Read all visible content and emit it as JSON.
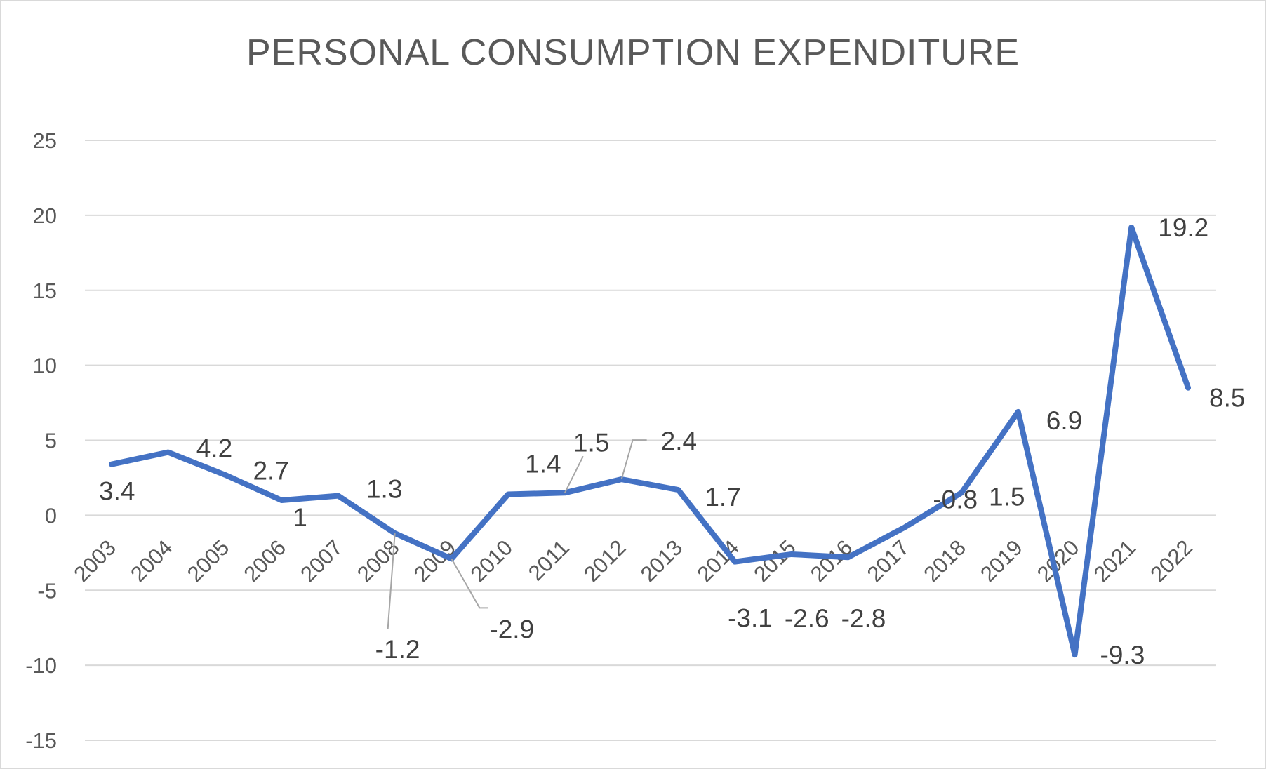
{
  "chart_data": {
    "type": "line",
    "title": "PERSONAL CONSUMPTION EXPENDITURE",
    "categories": [
      "2003",
      "2004",
      "2005",
      "2006",
      "2007",
      "2008",
      "2009",
      "2010",
      "2011",
      "2012",
      "2013",
      "2014",
      "2015",
      "2016",
      "2017",
      "2018",
      "2019",
      "2020",
      "2021",
      "2022"
    ],
    "series": [
      {
        "values": [
          3.4,
          4.2,
          2.7,
          1,
          1.3,
          -1.2,
          -2.9,
          1.4,
          1.5,
          2.4,
          1.7,
          -3.1,
          -2.6,
          -2.8,
          -0.8,
          1.5,
          6.9,
          -9.3,
          19.2,
          8.5
        ],
        "labels": [
          "3.4",
          "4.2",
          "2.7",
          "1",
          "1.3",
          "-1.2",
          "-2.9",
          "1.4",
          "1.5",
          "2.4",
          "1.7",
          "-3.1",
          "-2.6",
          "-2.8",
          "-0.8",
          "1.5",
          "6.9",
          "-9.3",
          "19.2",
          "8.5"
        ],
        "color": "#4472C4"
      }
    ],
    "ylim": [
      -15,
      25
    ],
    "yticks": [
      -15,
      -10,
      -5,
      0,
      5,
      10,
      15,
      20,
      25
    ],
    "grid": true,
    "legend": "none",
    "data_labels": true
  }
}
